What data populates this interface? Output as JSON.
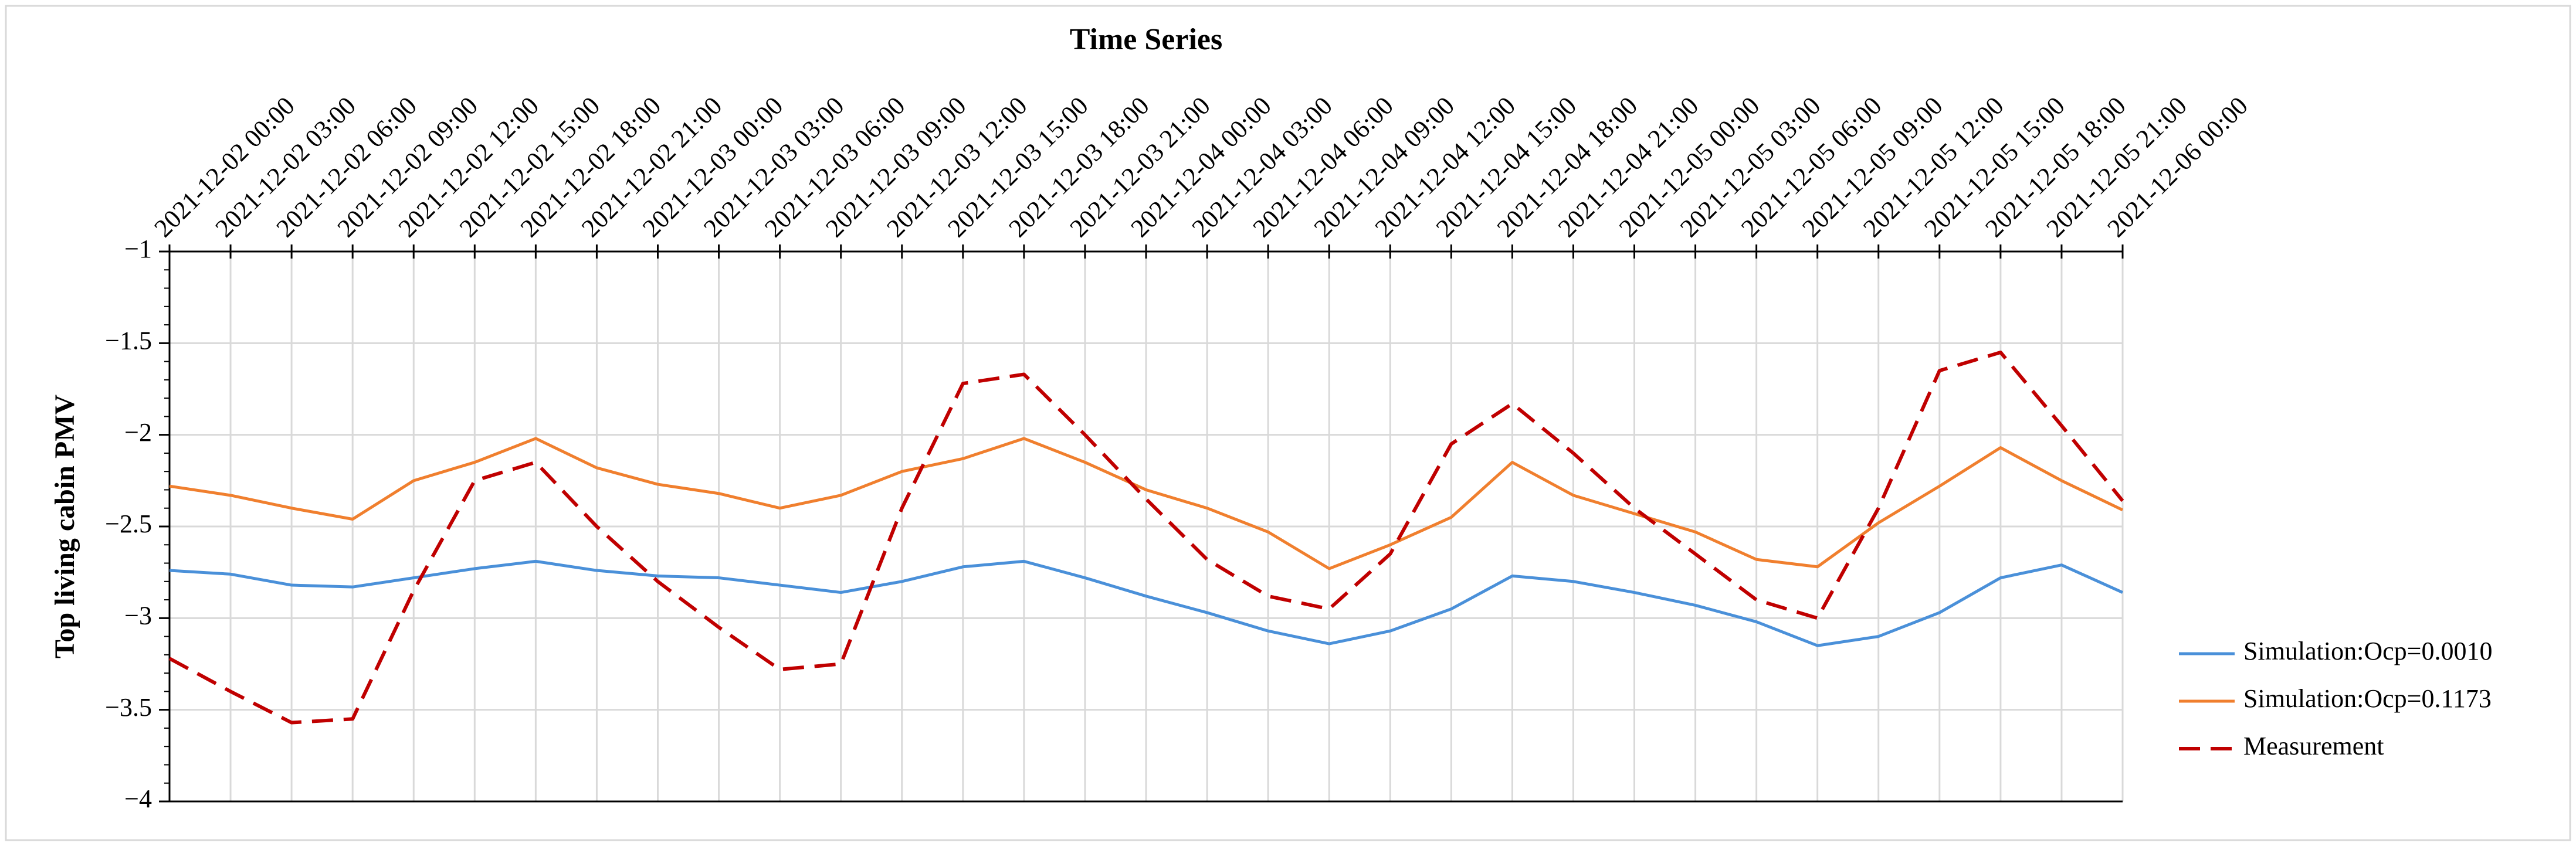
{
  "chart_data": {
    "type": "line",
    "title": "Time Series",
    "y_label": "Top living cabin PMV",
    "categories": [
      "2021-12-02 00:00",
      "2021-12-02 03:00",
      "2021-12-02 06:00",
      "2021-12-02 09:00",
      "2021-12-02 12:00",
      "2021-12-02 15:00",
      "2021-12-02 18:00",
      "2021-12-02 21:00",
      "2021-12-03 00:00",
      "2021-12-03 03:00",
      "2021-12-03 06:00",
      "2021-12-03 09:00",
      "2021-12-03 12:00",
      "2021-12-03 15:00",
      "2021-12-03 18:00",
      "2021-12-03 21:00",
      "2021-12-04 00:00",
      "2021-12-04 03:00",
      "2021-12-04 06:00",
      "2021-12-04 09:00",
      "2021-12-04 12:00",
      "2021-12-04 15:00",
      "2021-12-04 18:00",
      "2021-12-04 21:00",
      "2021-12-05 00:00",
      "2021-12-05 03:00",
      "2021-12-05 06:00",
      "2021-12-05 09:00",
      "2021-12-05 12:00",
      "2021-12-05 15:00",
      "2021-12-05 18:00",
      "2021-12-05 21:00",
      "2021-12-06 00:00"
    ],
    "series": [
      {
        "name": "Simulation:Ocp=0.0010",
        "color": "#4a90d9",
        "dash": false,
        "values": [
          -2.74,
          -2.76,
          -2.82,
          -2.83,
          -2.78,
          -2.73,
          -2.69,
          -2.74,
          -2.77,
          -2.78,
          -2.82,
          -2.86,
          -2.8,
          -2.72,
          -2.69,
          -2.78,
          -2.88,
          -2.97,
          -3.07,
          -3.14,
          -3.07,
          -2.95,
          -2.77,
          -2.8,
          -2.86,
          -2.93,
          -3.02,
          -3.15,
          -3.1,
          -2.97,
          -2.78,
          -2.71,
          -2.86
        ]
      },
      {
        "name": "Simulation:Ocp=0.1173",
        "color": "#f07f2e",
        "dash": false,
        "values": [
          -2.28,
          -2.33,
          -2.4,
          -2.46,
          -2.25,
          -2.15,
          -2.02,
          -2.18,
          -2.27,
          -2.32,
          -2.4,
          -2.33,
          -2.2,
          -2.13,
          -2.02,
          -2.15,
          -2.3,
          -2.4,
          -2.53,
          -2.73,
          -2.6,
          -2.45,
          -2.15,
          -2.33,
          -2.43,
          -2.53,
          -2.68,
          -2.72,
          -2.48,
          -2.28,
          -2.07,
          -2.25,
          -2.41
        ]
      },
      {
        "name": "Measurement",
        "color": "#c00000",
        "dash": true,
        "values": [
          -3.22,
          -3.4,
          -3.57,
          -3.55,
          -2.85,
          -2.25,
          -2.15,
          -2.5,
          -2.8,
          -3.05,
          -3.28,
          -3.25,
          -2.4,
          -1.72,
          -1.67,
          -2.0,
          -2.35,
          -2.68,
          -2.88,
          -2.95,
          -2.65,
          -2.05,
          -1.83,
          -2.1,
          -2.4,
          -2.65,
          -2.9,
          -3.0,
          -2.4,
          -1.65,
          -1.55,
          -1.95,
          -2.36
        ]
      }
    ],
    "ylim": [
      -4,
      -1
    ],
    "yticks": [
      {
        "value": -4,
        "label": "−4"
      },
      {
        "value": -3.5,
        "label": "−3.5"
      },
      {
        "value": -3,
        "label": "−3"
      },
      {
        "value": -2.5,
        "label": "−2.5"
      },
      {
        "value": -2,
        "label": "−2"
      },
      {
        "value": -1.5,
        "label": "−1.5"
      },
      {
        "value": -1,
        "label": "−1"
      }
    ],
    "grid": true,
    "legend": "right"
  }
}
